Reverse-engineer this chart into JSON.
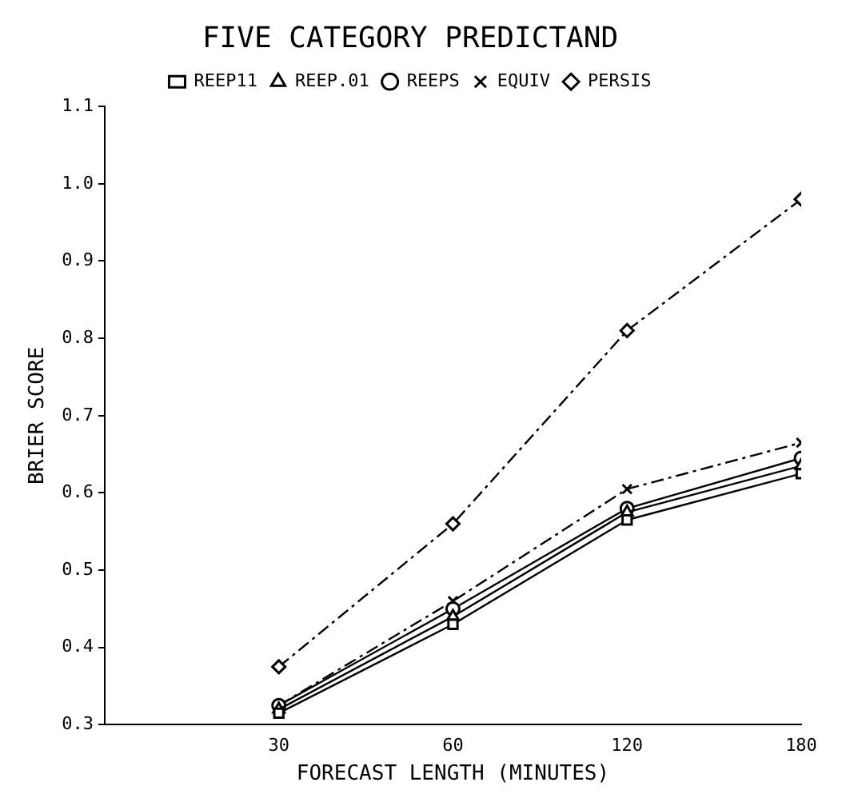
{
  "chart_data": {
    "type": "line",
    "title": "FIVE CATEGORY PREDICTAND",
    "xlabel": "FORECAST LENGTH (MINUTES)",
    "ylabel": "BRIER SCORE",
    "categories": [
      "30",
      "60",
      "120",
      "180"
    ],
    "series": [
      {
        "name": "REEP11",
        "color": "#000000",
        "marker": "square",
        "line_style": "solid",
        "values": [
          0.315,
          0.43,
          0.565,
          0.625
        ]
      },
      {
        "name": "REEP.01",
        "color": "#000000",
        "marker": "triangle",
        "line_style": "solid",
        "values": [
          0.32,
          0.44,
          0.575,
          0.635
        ]
      },
      {
        "name": "REEPS",
        "color": "#000000",
        "marker": "circle",
        "line_style": "solid",
        "values": [
          0.325,
          0.45,
          0.58,
          0.645
        ]
      },
      {
        "name": "EQUIV",
        "color": "#000000",
        "marker": "cross",
        "line_style": "dashed",
        "values": [
          0.325,
          0.46,
          0.605,
          0.665
        ]
      },
      {
        "name": "PERSIS",
        "color": "#000000",
        "marker": "diamond",
        "line_style": "dashed",
        "values": [
          0.375,
          0.56,
          0.81,
          0.98
        ]
      }
    ],
    "ylim": [
      0.3,
      1.1
    ],
    "yticks": [
      {
        "value": 0.3,
        "label": "0.3"
      },
      {
        "value": 0.4,
        "label": "0.4"
      },
      {
        "value": 0.5,
        "label": "0.5"
      },
      {
        "value": 0.6,
        "label": "0.6"
      },
      {
        "value": 0.7,
        "label": "0.7"
      },
      {
        "value": 0.8,
        "label": "0.8"
      },
      {
        "value": 0.9,
        "label": "0.9"
      },
      {
        "value": 1.0,
        "label": "1.0"
      },
      {
        "value": 1.1,
        "label": "1.1"
      }
    ],
    "grid": false,
    "legend": "top"
  }
}
